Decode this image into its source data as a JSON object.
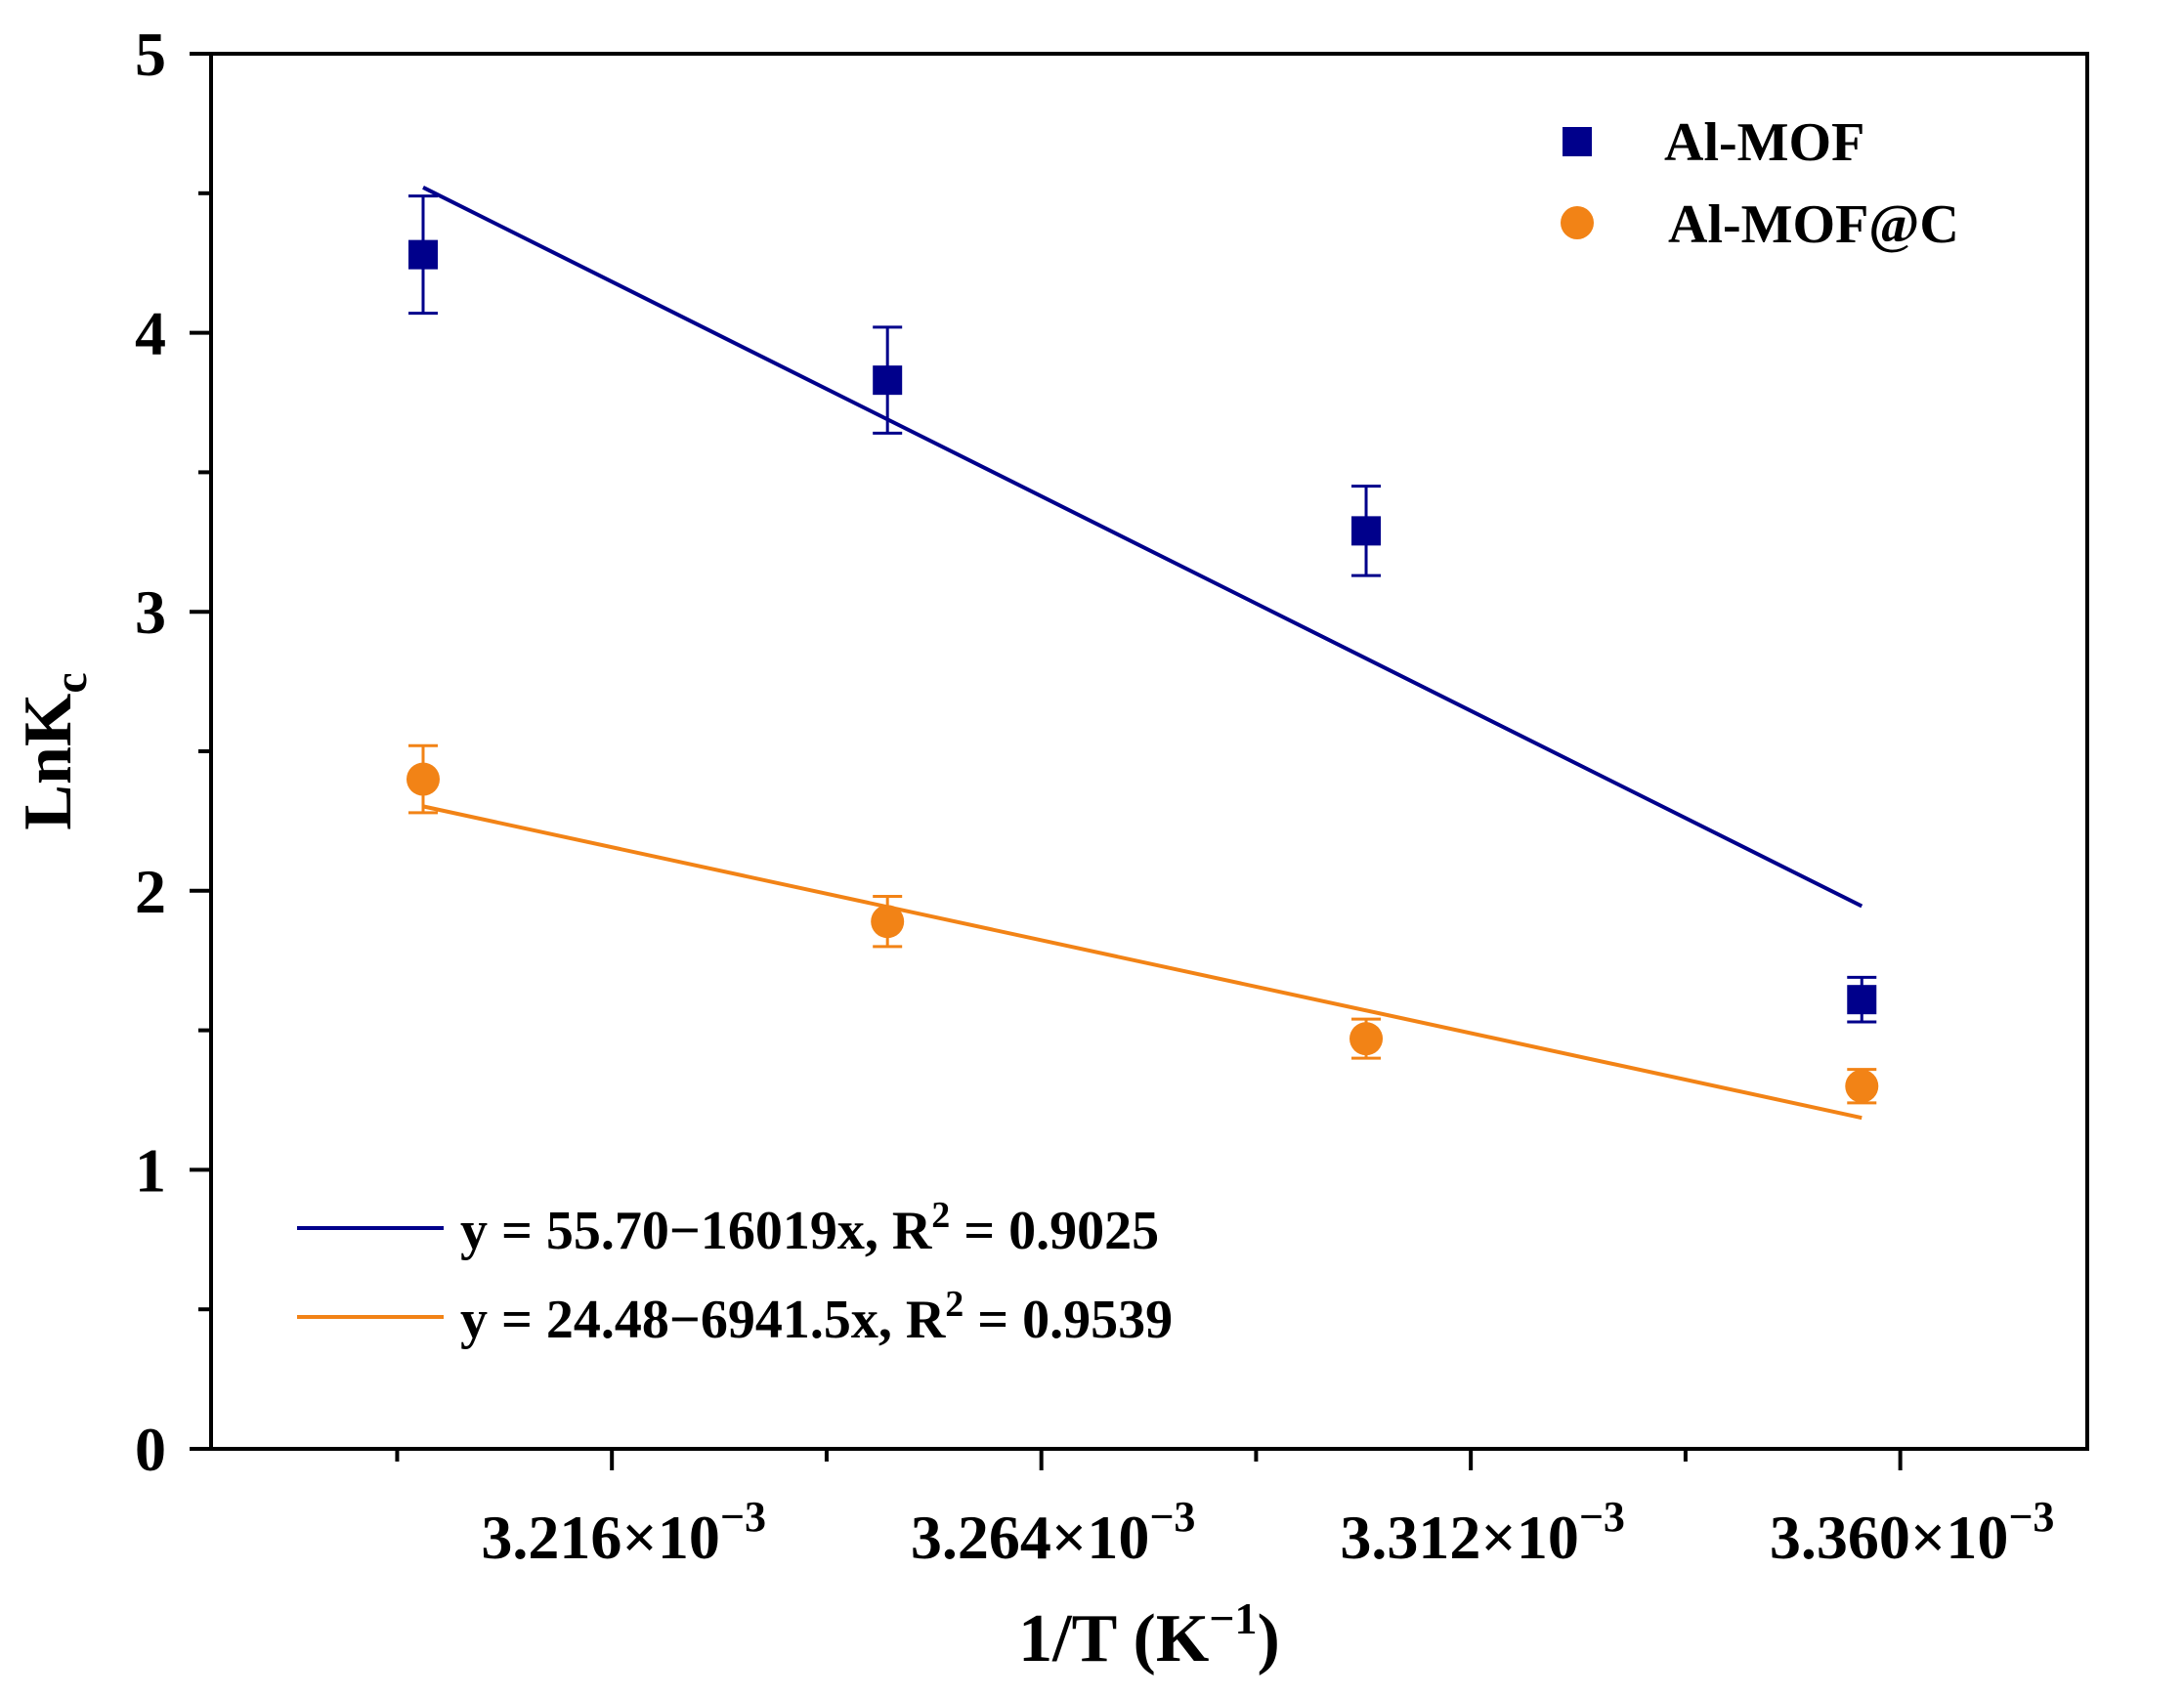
{
  "chart_data": {
    "type": "scatter",
    "xlabel": "1/T (K",
    "xlabel_sup": "−1",
    "xlabel_tail": ")",
    "ylabel": "LnK",
    "ylabel_sub": "c",
    "xlim": [
      0.0031712,
      0.0033809
    ],
    "ylim": [
      0,
      5
    ],
    "x_ticks": [
      {
        "value": 0.003216,
        "base": "3.216×10",
        "exp": "−3"
      },
      {
        "value": 0.003264,
        "base": "3.264×10",
        "exp": "−3"
      },
      {
        "value": 0.003312,
        "base": "3.312×10",
        "exp": "−3"
      },
      {
        "value": 0.00336,
        "base": "3.360×10",
        "exp": "−3"
      }
    ],
    "x_minor_ticks": [
      0.003192,
      0.00324,
      0.003288,
      0.003336
    ],
    "y_ticks": [
      0,
      1,
      2,
      3,
      4,
      5
    ],
    "y_tick_labels": [
      "0",
      "1",
      "2",
      "3",
      "4",
      "5"
    ],
    "y_minor_ticks": [
      0.5,
      1.5,
      2.5,
      3.5,
      4.5
    ],
    "legend_position": "top-right",
    "series": [
      {
        "name": "Al-MOF",
        "marker": "square",
        "color": "#00008B",
        "x": [
          0.0031949,
          0.0032468,
          0.0033003,
          0.0033557
        ],
        "y": [
          4.28,
          3.83,
          3.29,
          1.61
        ],
        "err": [
          0.21,
          0.19,
          0.16,
          0.08
        ],
        "fit": {
          "intercept": 55.7,
          "slope": -16019,
          "x_range": [
            0.0031949,
            0.0033557
          ],
          "label_y": "y = 55.70−16019x, R",
          "label_sup": "2",
          "label_tail": " = 0.9025"
        }
      },
      {
        "name": "Al-MOF@C",
        "marker": "circle",
        "color": "#F28316",
        "x": [
          0.0031949,
          0.0032468,
          0.0033003,
          0.0033557
        ],
        "y": [
          2.4,
          1.89,
          1.47,
          1.3
        ],
        "err": [
          0.12,
          0.09,
          0.07,
          0.06
        ],
        "fit": {
          "intercept": 24.48,
          "slope": -6941.5,
          "x_range": [
            0.0031949,
            0.0033557
          ],
          "label_y": "y = 24.48−6941.5x, R",
          "label_sup": "2",
          "label_tail": " = 0.9539"
        }
      }
    ]
  }
}
